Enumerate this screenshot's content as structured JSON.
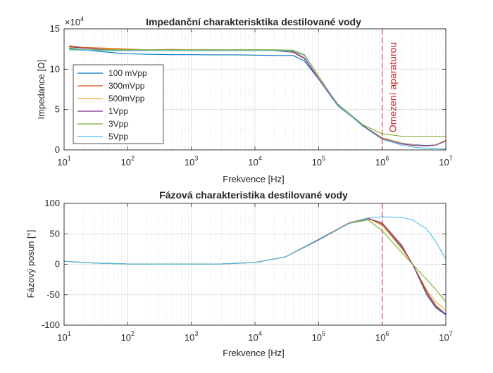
{
  "colors": {
    "100 mVpp": "#0072bd",
    "300mVpp": "#d95319",
    "500mVpp": "#edb120",
    "1Vpp": "#7e2f8e",
    "3Vpp": "#77ac30",
    "5Vpp": "#4dbeee",
    "limit": "#c0262b"
  },
  "chart_data": [
    {
      "type": "line",
      "title": "Impedanční charakterisktika destilované vody",
      "xlabel": "Frekvence [Hz]",
      "ylabel": "Impedance [Ω]",
      "xscale": "log",
      "xlim": [
        10,
        10000000
      ],
      "ylim": [
        0,
        150000
      ],
      "y_multiplier_label": "×10^4",
      "xticks": [
        "10^1",
        "10^2",
        "10^3",
        "10^4",
        "10^5",
        "10^6",
        "10^7"
      ],
      "yticks": [
        "0",
        "5",
        "10",
        "15"
      ],
      "grid": true,
      "legend_position": "middle-left",
      "annotation": {
        "text": "Omezení aparaturou",
        "x": 1000000
      },
      "series": [
        {
          "name": "100 mVpp",
          "x": [
            12,
            20,
            50,
            100,
            200,
            500,
            1000,
            2000,
            5000,
            10000,
            20000,
            40000,
            60000,
            100000,
            200000,
            500000,
            1000000,
            2000000,
            3000000,
            5000000,
            7000000,
            10000000
          ],
          "y": [
            126000,
            124000,
            121000,
            119000,
            118500,
            118000,
            118000,
            117800,
            117800,
            117500,
            117000,
            117000,
            110000,
            88000,
            55000,
            30000,
            15000,
            8500,
            6500,
            5500,
            6200,
            12000
          ]
        },
        {
          "name": "300mVpp",
          "x": [
            12,
            20,
            50,
            100,
            200,
            500,
            1000,
            2000,
            5000,
            10000,
            20000,
            40000,
            60000,
            100000,
            200000,
            500000,
            1000000,
            2000000,
            3000000,
            5000000,
            7000000,
            10000000
          ],
          "y": [
            129000,
            127000,
            126000,
            125000,
            124000,
            124500,
            124000,
            124000,
            124000,
            124000,
            124000,
            122000,
            114000,
            88000,
            55000,
            30000,
            15000,
            8000,
            6000,
            5000,
            6000,
            12000
          ]
        },
        {
          "name": "500mVpp",
          "x": [
            12,
            20,
            50,
            100,
            200,
            500,
            1000,
            2000,
            5000,
            10000,
            20000,
            40000,
            60000,
            100000,
            200000,
            500000,
            1000000,
            2000000,
            3000000,
            5000000,
            7000000,
            10000000
          ],
          "y": [
            127000,
            126000,
            125000,
            124500,
            124000,
            124000,
            124000,
            124000,
            124000,
            124000,
            124000,
            123500,
            118000,
            92000,
            56000,
            30000,
            15000,
            8000,
            6000,
            5000,
            6000,
            12000
          ]
        },
        {
          "name": "1Vpp",
          "x": [
            12,
            20,
            50,
            100,
            200,
            500,
            1000,
            2000,
            5000,
            10000,
            20000,
            40000,
            60000,
            100000,
            200000,
            500000,
            1000000,
            2000000,
            3000000,
            5000000,
            7000000,
            10000000
          ],
          "y": [
            128000,
            126000,
            124000,
            123500,
            123000,
            123000,
            123000,
            123000,
            123000,
            123000,
            123000,
            121000,
            113000,
            88000,
            55000,
            30000,
            14000,
            7500,
            5500,
            5000,
            6000,
            11000
          ]
        },
        {
          "name": "3Vpp",
          "x": [
            12,
            20,
            50,
            100,
            200,
            500,
            1000,
            2000,
            5000,
            10000,
            20000,
            40000,
            60000,
            100000,
            200000,
            500000,
            1000000,
            2000000,
            3000000,
            5000000,
            7000000,
            10000000
          ],
          "y": [
            125000,
            124000,
            124000,
            124000,
            124000,
            124000,
            124000,
            124000,
            124000,
            124000,
            124000,
            123500,
            118000,
            90000,
            57000,
            31000,
            20000,
            17000,
            17000,
            17000,
            17000,
            17000
          ]
        },
        {
          "name": "5Vpp",
          "x": [
            12,
            20,
            50,
            100,
            200,
            500,
            1000,
            2000,
            5000,
            10000,
            20000,
            40000,
            60000,
            100000,
            200000,
            500000,
            1000000,
            2000000,
            3000000,
            5000000,
            7000000,
            10000000
          ],
          "y": [
            124000,
            123500,
            123000,
            123000,
            123000,
            123000,
            123000,
            123000,
            123000,
            123000,
            123000,
            122500,
            117000,
            90000,
            56000,
            29000,
            13000,
            6000,
            3500,
            2000,
            1500,
            1000
          ]
        }
      ]
    },
    {
      "type": "line",
      "title": "Fázová charakteristika destilované vody",
      "xlabel": "Frekvence [Hz]",
      "ylabel": "Fázový posun [°]",
      "xscale": "log",
      "xlim": [
        10,
        10000000
      ],
      "ylim": [
        -100,
        100
      ],
      "xticks": [
        "10^1",
        "10^2",
        "10^3",
        "10^4",
        "10^5",
        "10^6",
        "10^7"
      ],
      "yticks": [
        "-100",
        "-50",
        "0",
        "50",
        "100"
      ],
      "grid": true,
      "annotation": {
        "x": 1000000
      },
      "series": [
        {
          "name": "100 mVpp",
          "x": [
            10,
            30,
            100,
            300,
            1000,
            3000,
            10000,
            30000,
            100000,
            300000,
            600000,
            1000000,
            2000000,
            3000000,
            5000000,
            7000000,
            10000000
          ],
          "y": [
            5,
            2,
            0.5,
            0.2,
            0.2,
            0.5,
            3,
            12,
            40,
            67,
            75,
            65,
            28,
            0,
            -50,
            -72,
            -83
          ]
        },
        {
          "name": "300mVpp",
          "x": [
            10,
            30,
            100,
            300,
            1000,
            3000,
            10000,
            30000,
            100000,
            300000,
            600000,
            1000000,
            2000000,
            3000000,
            5000000,
            7000000,
            10000000
          ],
          "y": [
            5,
            2,
            0.5,
            0.2,
            0.2,
            0.5,
            3,
            12,
            41,
            68,
            76,
            66,
            30,
            0,
            -48,
            -70,
            -82
          ]
        },
        {
          "name": "500mVpp",
          "x": [
            10,
            30,
            100,
            300,
            1000,
            3000,
            10000,
            30000,
            100000,
            300000,
            600000,
            1000000,
            2000000,
            3000000,
            5000000,
            7000000,
            10000000
          ],
          "y": [
            5,
            2,
            0.5,
            0.2,
            0.2,
            0.5,
            3,
            12,
            40,
            67,
            75,
            64,
            26,
            0,
            -42,
            -62,
            -76
          ]
        },
        {
          "name": "1Vpp",
          "x": [
            10,
            30,
            100,
            300,
            1000,
            3000,
            10000,
            30000,
            100000,
            300000,
            600000,
            1000000,
            2000000,
            3000000,
            5000000,
            7000000,
            10000000
          ],
          "y": [
            5,
            2,
            0.5,
            0.2,
            0.2,
            0.5,
            3,
            12,
            40,
            67,
            75,
            68,
            32,
            0,
            -45,
            -68,
            -82
          ]
        },
        {
          "name": "3Vpp",
          "x": [
            10,
            30,
            100,
            300,
            1000,
            3000,
            10000,
            30000,
            100000,
            300000,
            600000,
            1000000,
            2000000,
            3000000,
            5000000,
            7000000,
            10000000
          ],
          "y": [
            5,
            2,
            0.5,
            0.2,
            0.2,
            0.5,
            3,
            12,
            41,
            67,
            73,
            55,
            20,
            0,
            -25,
            -42,
            -62
          ]
        },
        {
          "name": "5Vpp",
          "x": [
            10,
            30,
            100,
            300,
            1000,
            3000,
            10000,
            30000,
            100000,
            300000,
            600000,
            1000000,
            2000000,
            3000000,
            5000000,
            7000000,
            10000000
          ],
          "y": [
            5,
            2,
            0.5,
            0.2,
            0.2,
            0.5,
            3,
            12,
            41,
            67,
            76,
            78,
            77,
            73,
            58,
            37,
            8
          ]
        }
      ]
    }
  ]
}
